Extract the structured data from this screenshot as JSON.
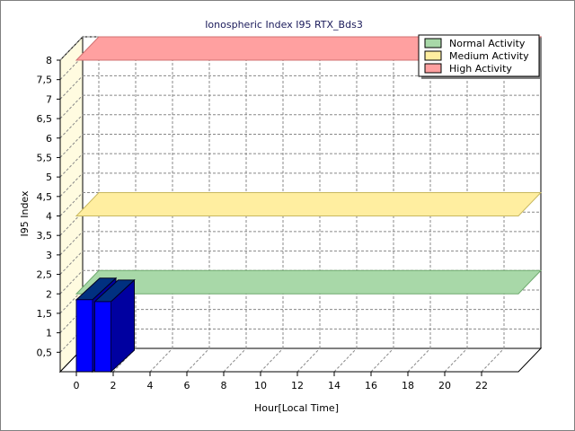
{
  "chart_data": {
    "type": "bar",
    "title": "Ionospheric Index I95 RTX_Bds3",
    "xlabel": "Hour[Local Time]",
    "ylabel": "I95 Index",
    "x_ticks": [
      "0",
      "2",
      "4",
      "6",
      "8",
      "10",
      "12",
      "14",
      "16",
      "18",
      "20",
      "22"
    ],
    "y_ticks": [
      "0,5",
      "1",
      "1,5",
      "2",
      "2,5",
      "3",
      "3,5",
      "4",
      "4,5",
      "5",
      "5,5",
      "6",
      "6,5",
      "7",
      "7,5",
      "8"
    ],
    "xlim": [
      0,
      24
    ],
    "ylim": [
      0,
      8
    ],
    "grid": true,
    "legend_position": "top-right",
    "series": [
      {
        "name": "I95",
        "color": "#0000ff",
        "x": [
          0,
          1
        ],
        "values": [
          1.85,
          1.8
        ]
      }
    ],
    "bands": [
      {
        "name": "Normal Activity",
        "value": 2,
        "color": "#a8d8a8"
      },
      {
        "name": "Medium Activity",
        "value": 4,
        "color": "#ffeea0"
      },
      {
        "name": "High Activity",
        "value": 8,
        "color": "#ffa0a0"
      }
    ]
  }
}
